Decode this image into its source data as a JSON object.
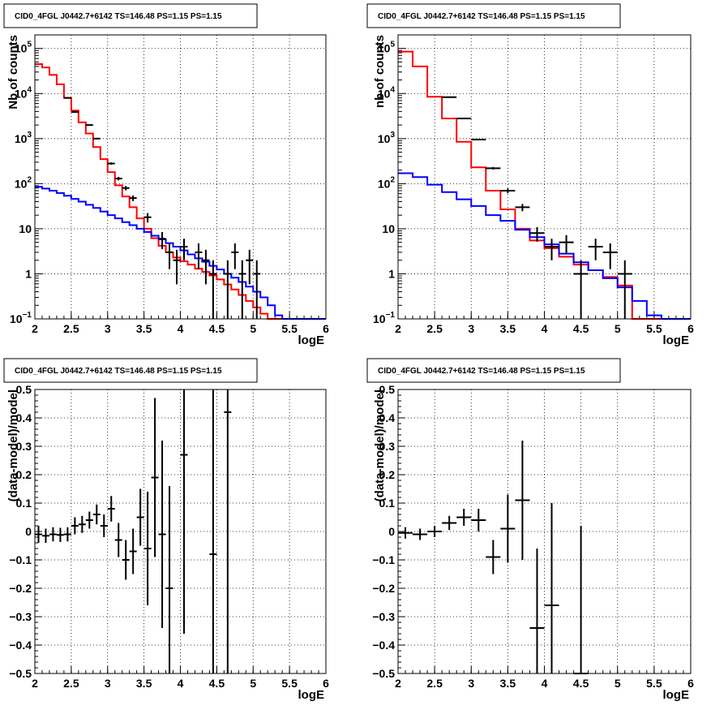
{
  "chart_data": [
    {
      "type": "histogram",
      "title": "CID0_4FGL J0442.7+6142 TS=146.48 PS=1.15 PS=1.15",
      "xlabel": "logE",
      "ylabel": "Nb of counts",
      "xlim": [
        2,
        6
      ],
      "ylim": [
        0.1,
        200000
      ],
      "log_y": true,
      "grid": true,
      "xticks": [
        "2",
        "2.5",
        "3",
        "3.5",
        "4",
        "4.5",
        "5",
        "5.5",
        "6"
      ],
      "yticks": [
        {
          "v": 0.1,
          "b": "10",
          "e": "−1"
        },
        {
          "v": 1,
          "b": "1",
          "e": ""
        },
        {
          "v": 10,
          "b": "10",
          "e": ""
        },
        {
          "v": 100,
          "b": "10",
          "e": "2"
        },
        {
          "v": 1000,
          "b": "10",
          "e": "3"
        },
        {
          "v": 10000,
          "b": "10",
          "e": "4"
        },
        {
          "v": 100000,
          "b": "10",
          "e": "5"
        }
      ],
      "bin_edges": [
        2.0,
        2.1,
        2.2,
        2.3,
        2.4,
        2.5,
        2.6,
        2.7,
        2.8,
        2.9,
        3.0,
        3.1,
        3.2,
        3.3,
        3.4,
        3.5,
        3.6,
        3.7,
        3.8,
        3.9,
        4.0,
        4.1,
        4.2,
        4.3,
        4.4,
        4.5,
        4.6,
        4.7,
        4.8,
        4.9,
        5.0,
        5.1,
        5.2,
        5.3,
        5.4,
        5.5,
        5.6,
        5.7,
        5.8,
        5.9,
        6.0
      ],
      "series": [
        {
          "color": "#ff0000",
          "values": [
            45000,
            38000,
            26000,
            16000,
            8000,
            4200,
            2300,
            1300,
            650,
            350,
            180,
            92,
            52,
            30,
            17,
            10,
            6.2,
            4.2,
            3.0,
            2.3,
            1.9,
            1.6,
            1.3,
            1.1,
            0.92,
            0.75,
            0.58,
            0.45,
            0.34,
            0.25,
            0.18,
            0.13,
            0.1,
            0.1,
            0.1,
            0.1,
            0.1,
            0.1,
            0.1,
            0.1
          ]
        },
        {
          "color": "#0000ff",
          "values": [
            85,
            78,
            70,
            62,
            54,
            46,
            40,
            34,
            29,
            24,
            20,
            17,
            14,
            12,
            10,
            8.5,
            7.0,
            5.8,
            4.8,
            4.0,
            3.3,
            2.7,
            2.2,
            1.85,
            1.5,
            1.25,
            1.0,
            0.82,
            0.66,
            0.52,
            0.4,
            0.3,
            0.2,
            0.12,
            0.1,
            0.1,
            0.1,
            0.1,
            0.1,
            0.1
          ]
        }
      ],
      "data_points": [
        {
          "x": 2.45,
          "y": 8000
        },
        {
          "x": 2.55,
          "y": 3900
        },
        {
          "x": 2.75,
          "y": 2000
        },
        {
          "x": 2.85,
          "y": 1000
        },
        {
          "x": 3.05,
          "y": 280
        },
        {
          "x": 3.15,
          "y": 130
        },
        {
          "x": 3.25,
          "y": 80
        },
        {
          "x": 3.35,
          "y": 48
        },
        {
          "x": 3.55,
          "y": 18
        },
        {
          "x": 3.75,
          "y": 6
        },
        {
          "x": 3.85,
          "y": 3
        },
        {
          "x": 3.95,
          "y": 2
        },
        {
          "x": 4.05,
          "y": 4
        },
        {
          "x": 4.25,
          "y": 3
        },
        {
          "x": 4.35,
          "y": 2
        },
        {
          "x": 4.45,
          "y": 1
        },
        {
          "x": 4.65,
          "y": 1
        },
        {
          "x": 4.75,
          "y": 3
        },
        {
          "x": 4.85,
          "y": 1
        },
        {
          "x": 4.95,
          "y": 2
        },
        {
          "x": 5.05,
          "y": 1
        }
      ]
    },
    {
      "type": "histogram",
      "title": "CID0_4FGL J0442.7+6142 TS=146.48 PS=1.15 PS=1.15",
      "xlabel": "logE",
      "ylabel": "nb of counts",
      "xlim": [
        2,
        6
      ],
      "ylim": [
        0.1,
        200000
      ],
      "log_y": true,
      "grid": true,
      "xticks": [
        "2",
        "2.5",
        "3",
        "3.5",
        "4",
        "4.5",
        "5",
        "5.5",
        "6"
      ],
      "yticks": [
        {
          "v": 0.1,
          "b": "10",
          "e": "−1"
        },
        {
          "v": 1,
          "b": "1",
          "e": ""
        },
        {
          "v": 10,
          "b": "10",
          "e": ""
        },
        {
          "v": 100,
          "b": "10",
          "e": "2"
        },
        {
          "v": 1000,
          "b": "10",
          "e": "3"
        },
        {
          "v": 10000,
          "b": "10",
          "e": "4"
        },
        {
          "v": 100000,
          "b": "10",
          "e": "5"
        }
      ],
      "bin_edges": [
        2.0,
        2.2,
        2.4,
        2.6,
        2.8,
        3.0,
        3.2,
        3.4,
        3.6,
        3.8,
        4.0,
        4.2,
        4.4,
        4.6,
        4.8,
        5.0,
        5.2,
        5.4,
        5.6,
        5.8,
        6.0
      ],
      "series": [
        {
          "color": "#ff0000",
          "values": [
            85000,
            40000,
            8500,
            2800,
            850,
            230,
            70,
            27,
            10,
            5.5,
            3.7,
            2.4,
            1.6,
            1.2,
            0.85,
            0.55,
            0.1,
            0.1,
            0.1,
            0.1
          ]
        },
        {
          "color": "#0000ff",
          "values": [
            170,
            140,
            95,
            65,
            45,
            32,
            20,
            15,
            9.5,
            6.5,
            4.5,
            2.8,
            1.8,
            1.2,
            0.8,
            0.5,
            0.25,
            0.12,
            0.1,
            0.1
          ]
        }
      ],
      "data_points": [
        {
          "x": 2.7,
          "y": 8300
        },
        {
          "x": 2.9,
          "y": 2800
        },
        {
          "x": 3.1,
          "y": 950
        },
        {
          "x": 3.3,
          "y": 220
        },
        {
          "x": 3.5,
          "y": 70
        },
        {
          "x": 3.7,
          "y": 30
        },
        {
          "x": 3.9,
          "y": 8
        },
        {
          "x": 4.1,
          "y": 4
        },
        {
          "x": 4.3,
          "y": 5
        },
        {
          "x": 4.5,
          "y": 1
        },
        {
          "x": 4.7,
          "y": 4
        },
        {
          "x": 4.9,
          "y": 3
        },
        {
          "x": 5.1,
          "y": 1
        }
      ]
    },
    {
      "type": "errorbar",
      "title": "CID0_4FGL J0442.7+6142 TS=146.48 PS=1.15 PS=1.15",
      "xlabel": "logE",
      "ylabel": "(data-model)/model",
      "xlim": [
        2,
        6
      ],
      "ylim": [
        -0.5,
        0.5
      ],
      "log_y": false,
      "grid": true,
      "xticks": [
        "2",
        "2.5",
        "3",
        "3.5",
        "4",
        "4.5",
        "5",
        "5.5",
        "6"
      ],
      "yticks": [
        "−0.5",
        "−0.4",
        "−0.3",
        "−0.2",
        "−0.1",
        "0",
        "0.1",
        "0.2",
        "0.3",
        "0.4",
        "0.5"
      ],
      "points": [
        {
          "x": 2.05,
          "y": -0.01,
          "err": 0.03
        },
        {
          "x": 2.15,
          "y": -0.015,
          "err": 0.025
        },
        {
          "x": 2.25,
          "y": -0.01,
          "err": 0.025
        },
        {
          "x": 2.35,
          "y": -0.012,
          "err": 0.025
        },
        {
          "x": 2.45,
          "y": -0.01,
          "err": 0.025
        },
        {
          "x": 2.55,
          "y": 0.02,
          "err": 0.03
        },
        {
          "x": 2.65,
          "y": 0.025,
          "err": 0.03
        },
        {
          "x": 2.75,
          "y": 0.04,
          "err": 0.03
        },
        {
          "x": 2.85,
          "y": 0.06,
          "err": 0.035
        },
        {
          "x": 2.95,
          "y": 0.02,
          "err": 0.04
        },
        {
          "x": 3.05,
          "y": 0.08,
          "err": 0.045
        },
        {
          "x": 3.15,
          "y": -0.03,
          "err": 0.06
        },
        {
          "x": 3.25,
          "y": -0.1,
          "err": 0.07
        },
        {
          "x": 3.35,
          "y": -0.07,
          "err": 0.08
        },
        {
          "x": 3.45,
          "y": 0.05,
          "err": 0.1
        },
        {
          "x": 3.55,
          "y": -0.06,
          "err": 0.2
        },
        {
          "x": 3.65,
          "y": 0.19,
          "err": 0.28
        },
        {
          "x": 3.75,
          "y": -0.01,
          "err": 0.33
        },
        {
          "x": 3.85,
          "y": -0.2,
          "err": 0.36
        },
        {
          "x": 4.05,
          "y": 0.27,
          "err": 0.63
        },
        {
          "x": 4.45,
          "y": -0.08,
          "err": 0.9
        },
        {
          "x": 4.65,
          "y": 0.42,
          "err": 0.95
        }
      ]
    },
    {
      "type": "errorbar",
      "title": "CID0_4FGL J0442.7+6142 TS=146.48 PS=1.15 PS=1.15",
      "xlabel": "logE",
      "ylabel": "(data-model)/model",
      "xlim": [
        2,
        6
      ],
      "ylim": [
        -0.5,
        0.5
      ],
      "log_y": false,
      "grid": true,
      "xticks": [
        "2",
        "2.5",
        "3",
        "3.5",
        "4",
        "4.5",
        "5",
        "5.5",
        "6"
      ],
      "yticks": [
        "−0.5",
        "−0.4",
        "−0.3",
        "−0.2",
        "−0.1",
        "0",
        "0.1",
        "0.2",
        "0.3",
        "0.4",
        "0.5"
      ],
      "points": [
        {
          "x": 2.1,
          "y": -0.005,
          "err": 0.02
        },
        {
          "x": 2.3,
          "y": -0.01,
          "err": 0.02
        },
        {
          "x": 2.5,
          "y": 0.0,
          "err": 0.02
        },
        {
          "x": 2.7,
          "y": 0.03,
          "err": 0.025
        },
        {
          "x": 2.9,
          "y": 0.05,
          "err": 0.03
        },
        {
          "x": 3.1,
          "y": 0.04,
          "err": 0.04
        },
        {
          "x": 3.3,
          "y": -0.09,
          "err": 0.06
        },
        {
          "x": 3.5,
          "y": 0.01,
          "err": 0.12
        },
        {
          "x": 3.7,
          "y": 0.11,
          "err": 0.21
        },
        {
          "x": 3.9,
          "y": -0.34,
          "err": 0.28
        },
        {
          "x": 4.1,
          "y": -0.26,
          "err": 0.36
        },
        {
          "x": 4.5,
          "y": -0.5,
          "err": 0.52
        }
      ]
    }
  ]
}
